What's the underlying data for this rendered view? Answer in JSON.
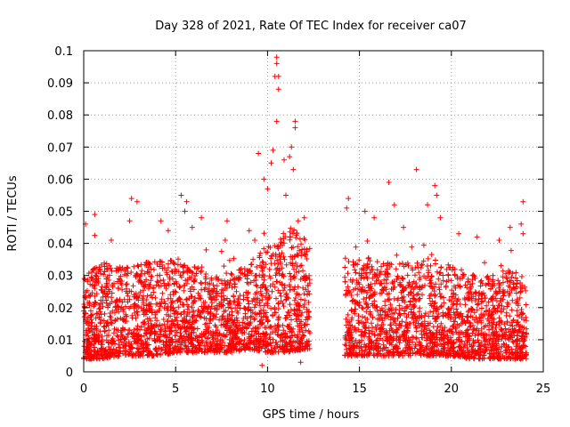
{
  "chart_data": {
    "type": "scatter",
    "title": "Day 328 of 2021, Rate Of TEC Index for receiver ca07",
    "xlabel": "GPS time / hours",
    "ylabel": "ROTI / TECUs",
    "xlim": [
      0,
      25
    ],
    "ylim": [
      0,
      0.1
    ],
    "xticks": [
      0,
      5,
      10,
      15,
      20,
      25
    ],
    "xtick_labels": [
      "0",
      "5",
      "10",
      "15",
      "20",
      "25"
    ],
    "yticks": [
      0,
      0.01,
      0.02,
      0.03,
      0.04,
      0.05,
      0.06,
      0.07,
      0.08,
      0.09,
      0.1
    ],
    "ytick_labels": [
      "0",
      "0.01",
      "0.02",
      "0.03",
      "0.04",
      "0.05",
      "0.06",
      "0.07",
      "0.08",
      "0.09",
      "0.1"
    ],
    "grid": true,
    "marker": "+",
    "color": "#ff0000",
    "data_gap_hours": [
      12.3,
      14.2
    ],
    "envelope": {
      "x": [
        0,
        1,
        2,
        3,
        4,
        5,
        6,
        7,
        8,
        9,
        10,
        11,
        12,
        12.3,
        14.2,
        15,
        16,
        17,
        18,
        19,
        20,
        21,
        22,
        23,
        24
      ],
      "typical_max": [
        0.03,
        0.034,
        0.033,
        0.034,
        0.035,
        0.036,
        0.033,
        0.03,
        0.031,
        0.034,
        0.04,
        0.045,
        0.042,
        0.04,
        0.038,
        0.036,
        0.035,
        0.034,
        0.034,
        0.036,
        0.033,
        0.031,
        0.03,
        0.032,
        0.03
      ],
      "typical_min": [
        0.004,
        0.004,
        0.005,
        0.005,
        0.005,
        0.006,
        0.006,
        0.006,
        0.006,
        0.007,
        0.006,
        0.006,
        0.007,
        0.007,
        0.005,
        0.005,
        0.005,
        0.005,
        0.005,
        0.005,
        0.005,
        0.004,
        0.004,
        0.004,
        0.004
      ]
    },
    "notable_points": [
      {
        "x": 0.1,
        "y": 0.046
      },
      {
        "x": 0.6,
        "y": 0.049
      },
      {
        "x": 0.6,
        "y": 0.0425
      },
      {
        "x": 1.5,
        "y": 0.041
      },
      {
        "x": 2.6,
        "y": 0.054
      },
      {
        "x": 2.9,
        "y": 0.053
      },
      {
        "x": 2.5,
        "y": 0.047
      },
      {
        "x": 4.2,
        "y": 0.047
      },
      {
        "x": 4.6,
        "y": 0.044
      },
      {
        "x": 5.3,
        "y": 0.055
      },
      {
        "x": 5.6,
        "y": 0.053
      },
      {
        "x": 5.5,
        "y": 0.05
      },
      {
        "x": 5.9,
        "y": 0.045
      },
      {
        "x": 6.4,
        "y": 0.048
      },
      {
        "x": 7.5,
        "y": 0.0375
      },
      {
        "x": 7.7,
        "y": 0.041
      },
      {
        "x": 7.8,
        "y": 0.047
      },
      {
        "x": 9.0,
        "y": 0.044
      },
      {
        "x": 9.3,
        "y": 0.041
      },
      {
        "x": 9.5,
        "y": 0.068
      },
      {
        "x": 9.8,
        "y": 0.06
      },
      {
        "x": 10.2,
        "y": 0.065
      },
      {
        "x": 10.3,
        "y": 0.069
      },
      {
        "x": 10.5,
        "y": 0.098
      },
      {
        "x": 10.5,
        "y": 0.096
      },
      {
        "x": 10.4,
        "y": 0.092
      },
      {
        "x": 10.6,
        "y": 0.092
      },
      {
        "x": 10.6,
        "y": 0.088
      },
      {
        "x": 10.5,
        "y": 0.078
      },
      {
        "x": 10.9,
        "y": 0.066
      },
      {
        "x": 11.3,
        "y": 0.07
      },
      {
        "x": 11.5,
        "y": 0.078
      },
      {
        "x": 11.5,
        "y": 0.076
      },
      {
        "x": 11.2,
        "y": 0.067
      },
      {
        "x": 11.4,
        "y": 0.063
      },
      {
        "x": 11.0,
        "y": 0.055
      },
      {
        "x": 10.0,
        "y": 0.057
      },
      {
        "x": 12.0,
        "y": 0.048
      },
      {
        "x": 9.7,
        "y": 0.002
      },
      {
        "x": 11.8,
        "y": 0.003
      },
      {
        "x": 14.4,
        "y": 0.054
      },
      {
        "x": 14.3,
        "y": 0.051
      },
      {
        "x": 15.3,
        "y": 0.05
      },
      {
        "x": 15.8,
        "y": 0.048
      },
      {
        "x": 16.6,
        "y": 0.059
      },
      {
        "x": 16.9,
        "y": 0.052
      },
      {
        "x": 17.4,
        "y": 0.045
      },
      {
        "x": 18.1,
        "y": 0.063
      },
      {
        "x": 18.7,
        "y": 0.052
      },
      {
        "x": 19.1,
        "y": 0.058
      },
      {
        "x": 19.2,
        "y": 0.055
      },
      {
        "x": 19.4,
        "y": 0.048
      },
      {
        "x": 20.4,
        "y": 0.043
      },
      {
        "x": 21.4,
        "y": 0.042
      },
      {
        "x": 21.8,
        "y": 0.034
      },
      {
        "x": 22.6,
        "y": 0.041
      },
      {
        "x": 23.2,
        "y": 0.045
      },
      {
        "x": 23.9,
        "y": 0.053
      },
      {
        "x": 23.8,
        "y": 0.046
      },
      {
        "x": 23.9,
        "y": 0.043
      }
    ]
  }
}
